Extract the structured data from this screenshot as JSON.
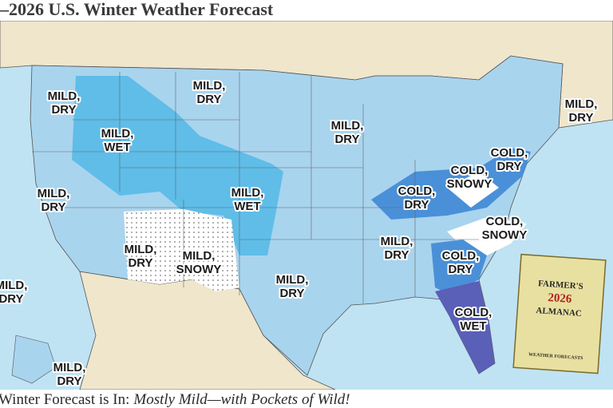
{
  "header": {
    "title": "–2026 U.S. Winter Weather Forecast"
  },
  "regions": [
    {
      "lines": [
        "MILD,",
        "DRY"
      ]
    },
    {
      "lines": [
        "MILD,",
        "DRY"
      ]
    },
    {
      "lines": [
        "MILD,",
        "WET"
      ]
    },
    {
      "lines": [
        "MILD,",
        "DRY"
      ]
    },
    {
      "lines": [
        "MILD,",
        "DRY"
      ]
    },
    {
      "lines": [
        "COLD,",
        "DRY"
      ]
    },
    {
      "lines": [
        "COLD,",
        "SNOWY"
      ]
    },
    {
      "lines": [
        "COLD,",
        "DRY"
      ]
    },
    {
      "lines": [
        "MILD,",
        "WET"
      ]
    },
    {
      "lines": [
        "MILD,",
        "DRY"
      ]
    },
    {
      "lines": [
        "COLD,",
        "SNOWY"
      ]
    },
    {
      "lines": [
        "MILD,",
        "DRY"
      ]
    },
    {
      "lines": [
        "COLD,",
        "DRY"
      ]
    },
    {
      "lines": [
        "MILD,",
        "DRY"
      ]
    },
    {
      "lines": [
        "MILD,",
        "SNOWY"
      ]
    },
    {
      "lines": [
        "MILD,",
        "DRY"
      ]
    },
    {
      "lines": [
        "COLD,",
        "WET"
      ]
    },
    {
      "lines": [
        "MILD,",
        "DRY"
      ]
    },
    {
      "lines": [
        "MILD,",
        "DRY"
      ]
    }
  ],
  "almanac_cover": {
    "title_top": "FARMER'S",
    "year": "2026",
    "title_bottom": "ALMANAC",
    "footer": "WEATHER FORECASTS"
  },
  "caption": {
    "lead": "Winter Forecast is In:",
    "emphasis": "Mostly Mild—with Pockets of Wild!"
  }
}
